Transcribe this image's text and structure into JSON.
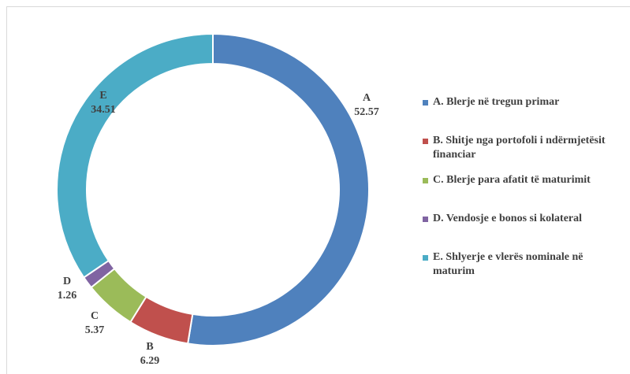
{
  "chart_data": {
    "type": "donut",
    "categories": [
      "A",
      "B",
      "C",
      "D",
      "E"
    ],
    "values": [
      52.57,
      6.29,
      5.37,
      1.26,
      34.51
    ],
    "legend": [
      "A. Blerje në tregun primar",
      "B. Shitje nga portofoli i ndërmjetësit financiar",
      "C. Blerje para afatit të maturimit",
      "D. Vendosje e bonos si kolateral",
      "E. Shlyerje e vlerës nominale në maturim"
    ],
    "colors": [
      "#4f81bd",
      "#c0504d",
      "#9bbb59",
      "#8064a2",
      "#4bacc6"
    ],
    "legend_position": "right"
  }
}
